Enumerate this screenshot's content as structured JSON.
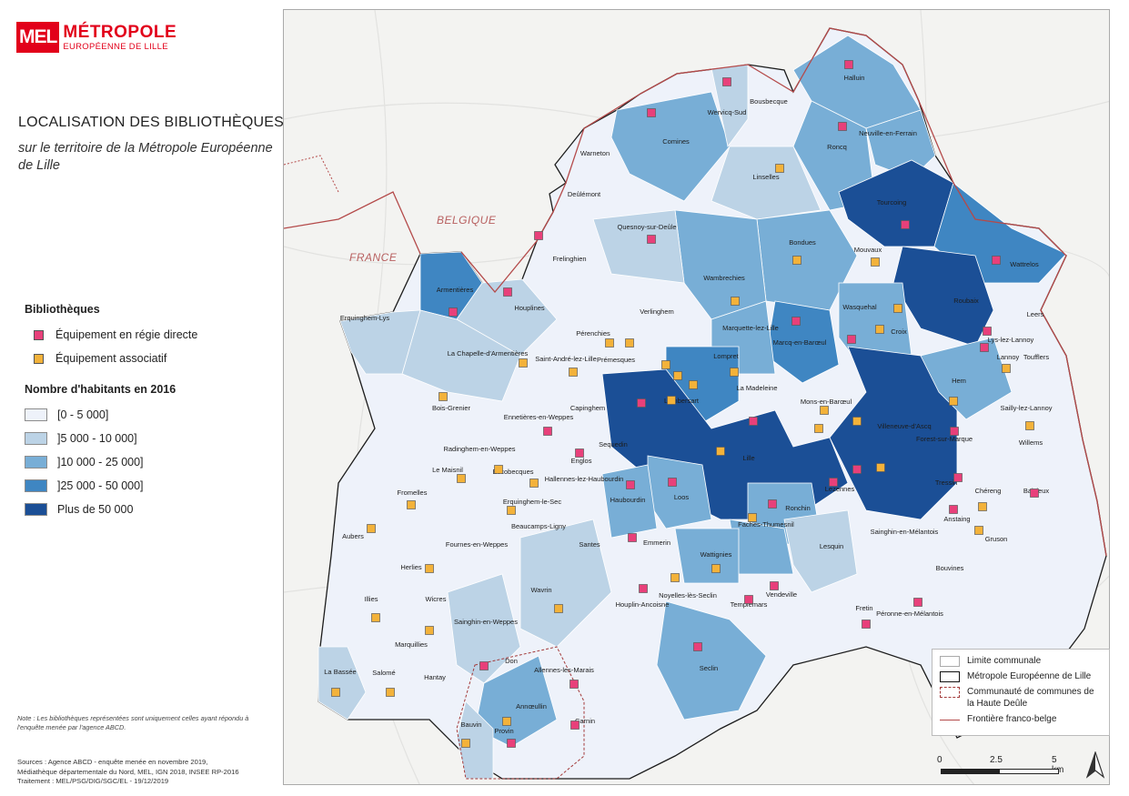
{
  "brand": {
    "mark": "MEL",
    "name": "MÉTROPOLE",
    "sub": "EUROPÉENNE DE LILLE"
  },
  "title": "LOCALISATION DES BIBLIOTHÈQUES",
  "subtitle": "sur le territoire de la Métropole Européenne de Lille",
  "legend": {
    "equip_title": "Bibliothèques",
    "equip": [
      {
        "label": "Équipement en régie directe",
        "color": "#e8407a"
      },
      {
        "label": "Équipement associatif",
        "color": "#f3b23a"
      }
    ],
    "pop_title": "Nombre d'habitants en 2016",
    "classes": [
      {
        "label": "[0 - 5 000]",
        "color": "#eef2fa"
      },
      {
        "label": "]5 000 - 10 000]",
        "color": "#bcd3e6"
      },
      {
        "label": "]10 000 - 25 000]",
        "color": "#78aed6"
      },
      {
        "label": "]25 000 - 50 000]",
        "color": "#3f86c2"
      },
      {
        "label": "Plus de 50 000",
        "color": "#1b4f96"
      }
    ]
  },
  "note": "Note : Les bibliothèques représentées sont uniquement celles ayant répondu à l'enquête menée par l'agence ABCD.",
  "sources": [
    "Sources : Agence ABCD - enquête menée en novembre 2019,",
    "Médiathèque départementale du Nord, MEL, IGN 2018, INSEE RP-2016",
    "Traitement : MEL/PSG/DIG/SGC/EL - 19/12/2019"
  ],
  "map": {
    "countries": {
      "be": "BELGIQUE",
      "fr": "FRANCE"
    },
    "legend": {
      "limite": "Limite communale",
      "mel": "Métropole Européenne de Lille",
      "haute_deule": "Communauté de communes de la Haute Deûle",
      "frontiere": "Frontière franco-belge"
    },
    "scale": {
      "l0": "0",
      "l1": "2.5",
      "l2": "5 km"
    },
    "communes": [
      "Halluin",
      "Bousbecque",
      "Wervicq-Sud",
      "Comines",
      "Roncq",
      "Neuville-en-Ferrain",
      "Warneton",
      "Linselles",
      "Deûlémont",
      "Tourcoing",
      "Quesnoy-sur-Deûle",
      "Bondues",
      "Wattrelos",
      "Mouvaux",
      "Frelinghien",
      "Wambrechies",
      "Roubaix",
      "Armentières",
      "Houplines",
      "Wasquehal",
      "Leers",
      "Verlinghem",
      "Marquette-lez-Lille",
      "Marcq-en-Barœul",
      "Croix",
      "Lys-lez-Lannoy",
      "Lannoy",
      "Erquinghem-Lys",
      "La Chapelle-d'Armentières",
      "Pérenchies",
      "Toufflers",
      "Saint-André-lez-Lille",
      "Prémesques",
      "Lompret",
      "Lambersart",
      "La Madeleine",
      "Hem",
      "Capinghem",
      "Bois-Grenier",
      "Sailly-lez-Lannoy",
      "Ennetières-en-Weppes",
      "Mons-en-Barœul",
      "Villeneuve-d'Ascq",
      "Willems",
      "Forest-sur-Marque",
      "Sequedin",
      "Radinghem-en-Weppes",
      "Lille",
      "Englos",
      "Le Maisnil",
      "Escobecques",
      "Hallennes-lez-Haubourdin",
      "Erquinghem-le-Sec",
      "Lezennes",
      "Loos",
      "Tressin",
      "Chéreng",
      "Baisieux",
      "Haubourdin",
      "Fromelles",
      "Ronchin",
      "Beaucamps-Ligny",
      "Anstaing",
      "Faches-Thumesnil",
      "Aubers",
      "Fournes-en-Weppes",
      "Emmerin",
      "Lesquin",
      "Sainghin-en-Mélantois",
      "Gruson",
      "Santes",
      "Wattignies",
      "Herlies",
      "Bouvines",
      "Noyelles-lès-Seclin",
      "Houplin-Ancoisne",
      "Vendeville",
      "Templemars",
      "Wavrin",
      "Wicres",
      "Illies",
      "Fretin",
      "Péronne-en-Mélantois",
      "Sainghin-en-Weppes",
      "Marquillies",
      "Don",
      "Seclin",
      "Allennes-les-Marais",
      "La Bassée",
      "Salomé",
      "Hantay",
      "Annœullin",
      "Carnin",
      "Bauvin",
      "Provin"
    ]
  }
}
